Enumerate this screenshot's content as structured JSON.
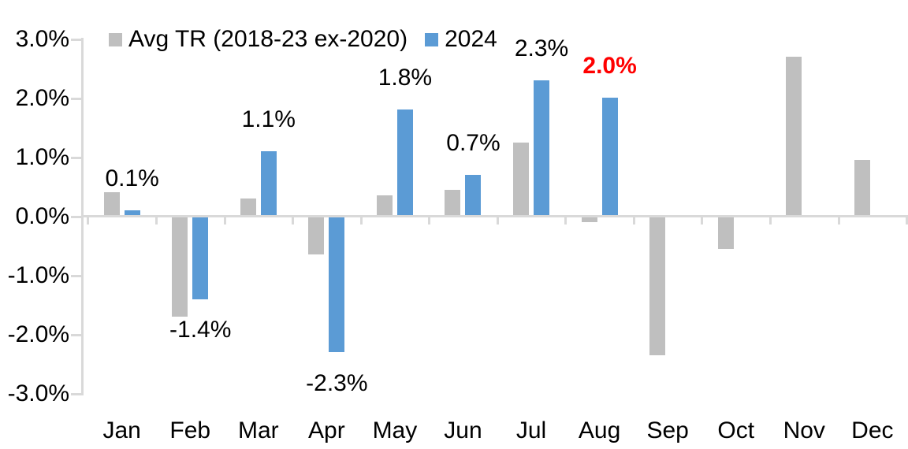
{
  "chart_data": {
    "type": "bar",
    "title": "",
    "categories": [
      "Jan",
      "Feb",
      "Mar",
      "Apr",
      "May",
      "Jun",
      "Jul",
      "Aug",
      "Sep",
      "Oct",
      "Nov",
      "Dec"
    ],
    "series": [
      {
        "name": "Avg TR (2018-23 ex-2020)",
        "color": "#BFBFBF",
        "values": [
          0.4,
          -1.7,
          0.3,
          -0.65,
          0.35,
          0.45,
          1.25,
          -0.1,
          -2.35,
          -0.55,
          2.7,
          0.95
        ]
      },
      {
        "name": "2024",
        "color": "#5B9BD5",
        "values": [
          0.1,
          -1.4,
          1.1,
          -2.3,
          1.8,
          0.7,
          2.3,
          2.0,
          null,
          null,
          null,
          null
        ],
        "data_labels": [
          "0.1%",
          "-1.4%",
          "1.1%",
          "-2.3%",
          "1.8%",
          "0.7%",
          "2.3%",
          "2.0%",
          null,
          null,
          null,
          null
        ],
        "label_highlight": {
          "index": 7,
          "color": "#FF0000",
          "bold": true
        }
      }
    ],
    "y_ticks": [
      {
        "label": "3.0%",
        "value": 3
      },
      {
        "label": "2.0%",
        "value": 2
      },
      {
        "label": "1.0%",
        "value": 1
      },
      {
        "label": "0.0%",
        "value": 0
      },
      {
        "label": "-1.0%",
        "value": -1
      },
      {
        "label": "-2.0%",
        "value": -2
      },
      {
        "label": "-3.0%",
        "value": -3
      }
    ],
    "ylim": [
      -3,
      3
    ],
    "unit": "%",
    "grid": false,
    "legend_position": "top"
  },
  "colors": {
    "axis": "#D9D9D9",
    "text": "#000000",
    "highlight": "#FF0000"
  }
}
